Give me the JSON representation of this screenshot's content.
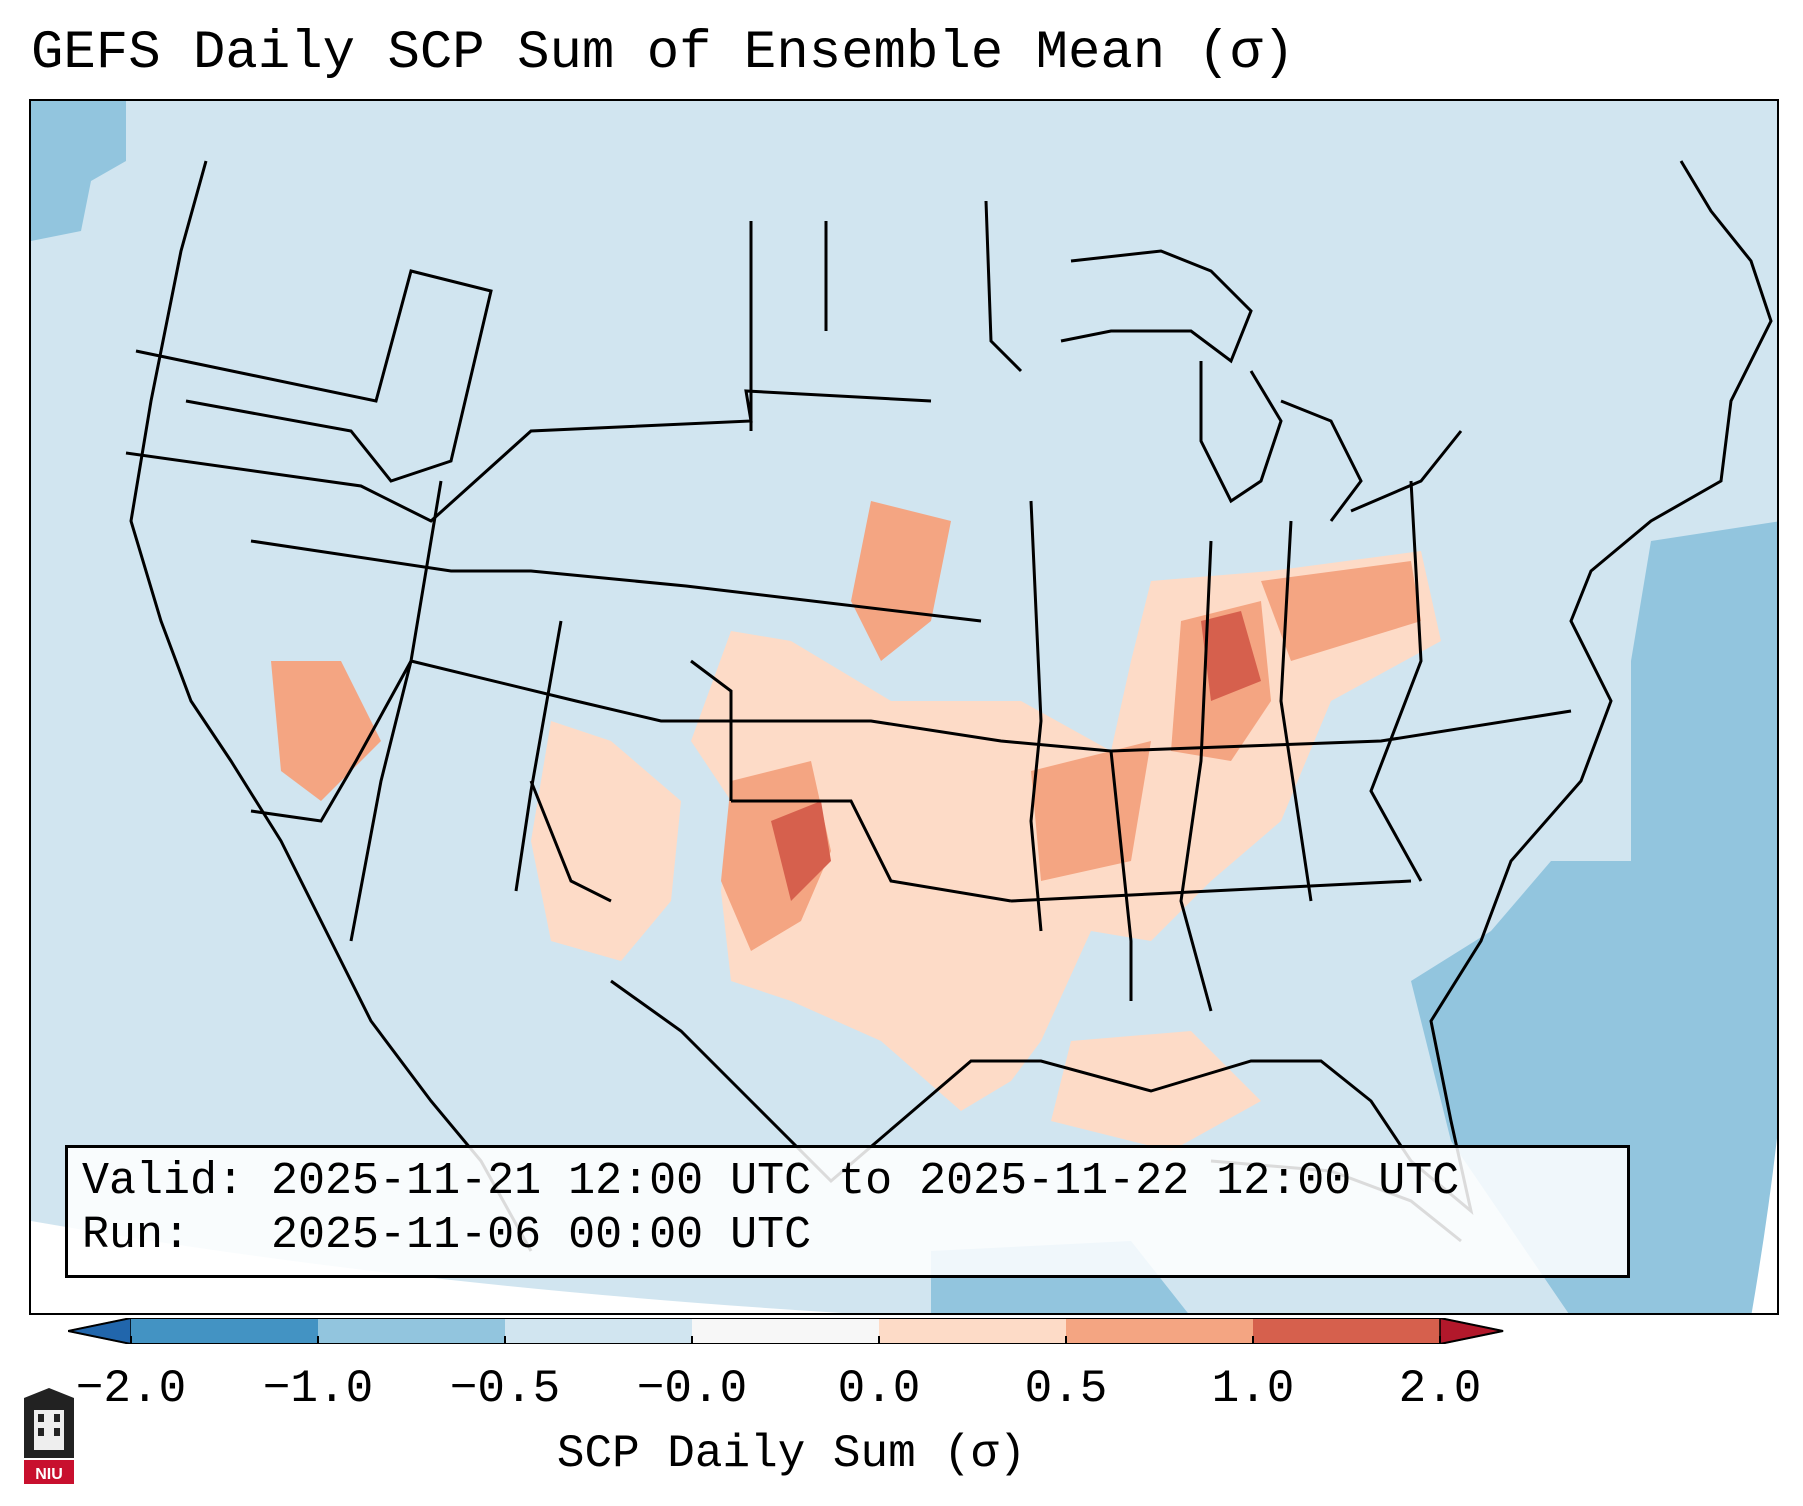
{
  "title": "GEFS Daily SCP Sum of Ensemble Mean (σ)",
  "info": {
    "valid_label": "Valid:",
    "valid_value": "2025-11-21 12:00 UTC to 2025-11-22 12:00 UTC",
    "run_label": "Run:",
    "run_value": "2025-11-06 00:00 UTC"
  },
  "colorbar": {
    "label": "SCP Daily Sum (σ)",
    "ticks": [
      "−2.0",
      "−1.0",
      "−0.5",
      "−0.0",
      "0.0",
      "0.5",
      "1.0",
      "2.0"
    ],
    "bins": [
      {
        "from": -2.0,
        "to": -1.0,
        "color": "#4393c3"
      },
      {
        "from": -1.0,
        "to": -0.5,
        "color": "#92c5de"
      },
      {
        "from": -0.5,
        "to": -0.0,
        "color": "#d1e5f0"
      },
      {
        "from": -0.0,
        "to": 0.0,
        "color": "#f7f7f7"
      },
      {
        "from": 0.0,
        "to": 0.5,
        "color": "#fddbc7"
      },
      {
        "from": 0.5,
        "to": 1.0,
        "color": "#f4a582"
      },
      {
        "from": 1.0,
        "to": 2.0,
        "color": "#d6604d"
      }
    ],
    "under_color": "#2166ac",
    "over_color": "#b2182b"
  },
  "map": {
    "region": "Contiguous United States",
    "background_color": "#d1e5f0",
    "highlights": [
      {
        "area": "Indiana",
        "level": "> 1.0"
      },
      {
        "area": "Western Oklahoma / Texas Panhandle",
        "level": "> 1.0"
      },
      {
        "area": "Eastern Nebraska / Iowa",
        "level": "0.5 to 1.0"
      },
      {
        "area": "Western Atlantic",
        "level": "-1.0 to -0.5"
      }
    ]
  },
  "logo": {
    "text": "NIU"
  }
}
